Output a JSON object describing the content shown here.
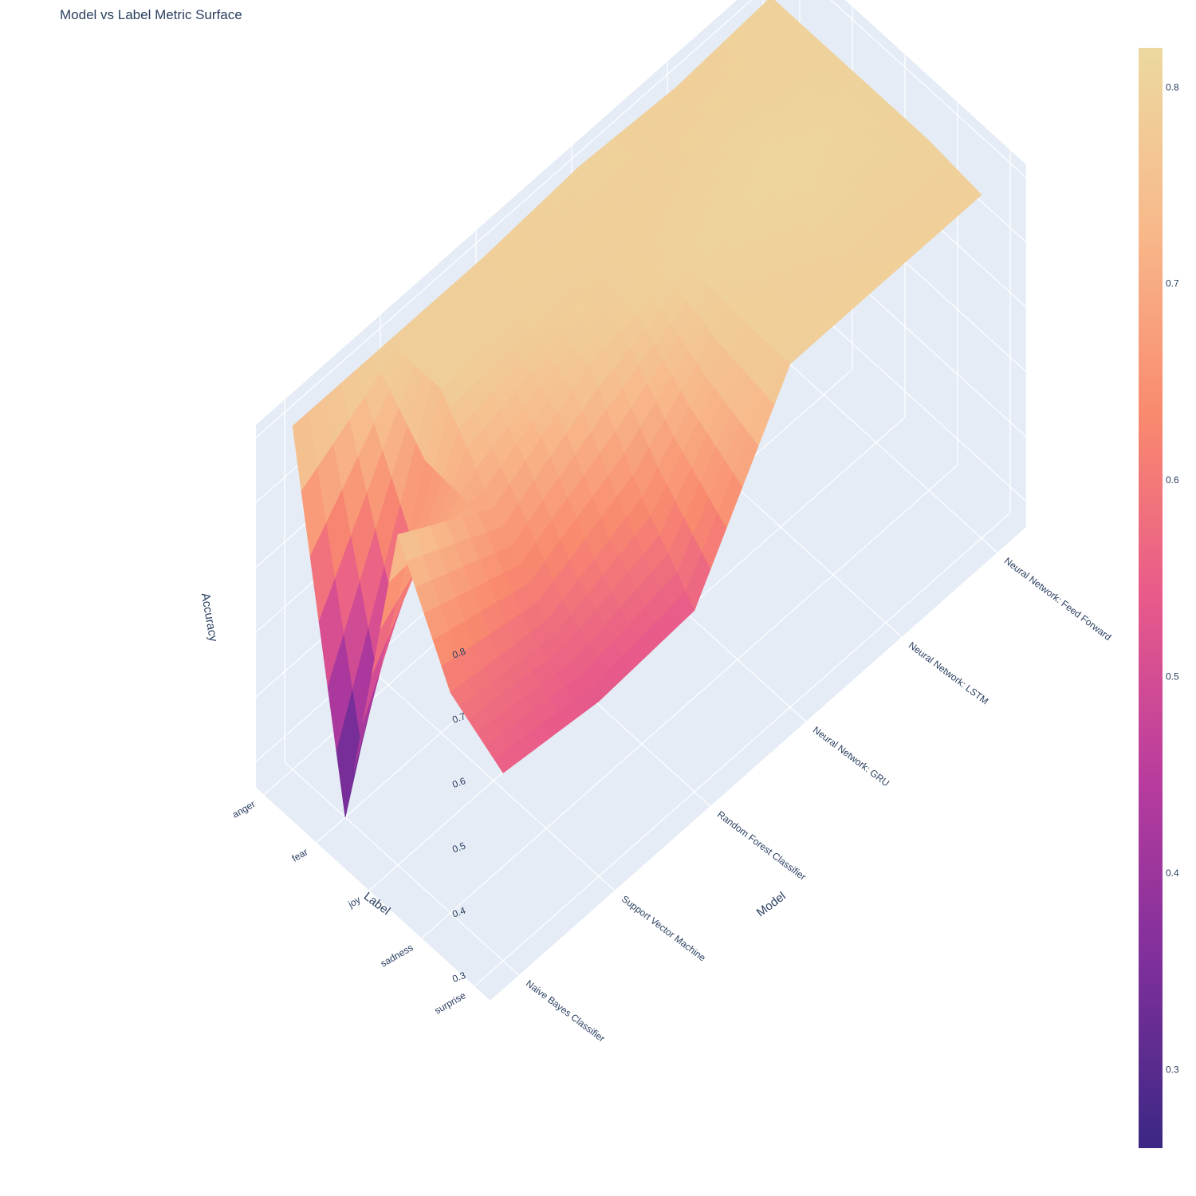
{
  "chart_data": {
    "type": "surface",
    "title": "Model vs Label Metric Surface",
    "xlabel": "Model",
    "ylabel": "Label",
    "zlabel": "Accuracy",
    "models": [
      "Naive Bayes Classifier",
      "Support Vector Machine",
      "Random Forest Classifier",
      "Neural Network: GRU",
      "Neural Network: LSTM",
      "Neural Network: Feed Forward"
    ],
    "labels": [
      "anger",
      "fear",
      "joy",
      "sadness",
      "surprise"
    ],
    "z_ticks": [
      "0.3",
      "0.4",
      "0.5",
      "0.6",
      "0.7",
      "0.8"
    ],
    "zlim": [
      0.26,
      0.82
    ],
    "colorbar_ticks": [
      "0.3",
      "0.4",
      "0.5",
      "0.6",
      "0.7",
      "0.8"
    ],
    "colorbar_range": [
      0.26,
      0.82
    ],
    "colorscale": [
      "#3b2883",
      "#7e2f9b",
      "#b83c9e",
      "#e85a8a",
      "#f98a6e",
      "#f8b88a",
      "#ecd9a0"
    ],
    "z": [
      [
        0.79,
        0.26,
        0.77,
        0.6,
        0.55
      ],
      [
        0.79,
        0.79,
        0.68,
        0.58,
        0.53
      ],
      [
        0.79,
        0.79,
        0.77,
        0.64,
        0.54
      ],
      [
        0.8,
        0.79,
        0.8,
        0.79,
        0.79
      ],
      [
        0.79,
        0.8,
        0.81,
        0.8,
        0.79
      ],
      [
        0.8,
        0.8,
        0.8,
        0.8,
        0.79
      ]
    ],
    "grid": true,
    "legend": "colorbar-right"
  }
}
